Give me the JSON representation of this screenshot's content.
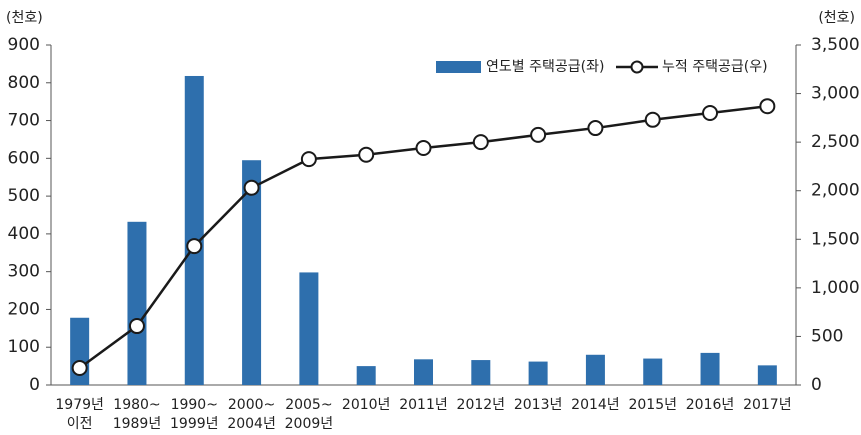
{
  "chart_data": {
    "type": "bar_line",
    "y_unit": "(천호)",
    "y2_unit": "(천호)",
    "categories": [
      [
        "1979년",
        "이전"
      ],
      [
        "1980~",
        "1989년"
      ],
      [
        "1990~",
        "1999년"
      ],
      [
        "2000~",
        "2004년"
      ],
      [
        "2005~",
        "2009년"
      ],
      [
        "2010년"
      ],
      [
        "2011년"
      ],
      [
        "2012년"
      ],
      [
        "2013년"
      ],
      [
        "2014년"
      ],
      [
        "2015년"
      ],
      [
        "2016년"
      ],
      [
        "2017년"
      ]
    ],
    "series": [
      {
        "name": "연도별 주택공급(좌)",
        "type": "bar",
        "color": "#2e6fad",
        "values": [
          178,
          432,
          818,
          595,
          298,
          50,
          68,
          66,
          62,
          80,
          70,
          85,
          52
        ]
      },
      {
        "name": "누적 주택공급(우)",
        "type": "line",
        "axis": "y2",
        "color": "#1a1a1a",
        "values": [
          175,
          607,
          1430,
          2030,
          2325,
          2370,
          2440,
          2500,
          2575,
          2645,
          2730,
          2800,
          2870
        ]
      }
    ],
    "ylim": [
      0,
      900
    ],
    "yticks": [
      0,
      100,
      200,
      300,
      400,
      500,
      600,
      700,
      800,
      900
    ],
    "y2lim": [
      0,
      3500
    ],
    "y2ticks": [
      0,
      500,
      {
        "value": 1000,
        "label": "1,000"
      },
      {
        "value": 1500,
        "label": "1,500"
      },
      {
        "value": 2000,
        "label": "2,000"
      },
      {
        "value": 2500,
        "label": "2,500"
      },
      {
        "value": 3000,
        "label": "3,000"
      },
      {
        "value": 3500,
        "label": "3,500"
      }
    ],
    "legend": "top-right"
  }
}
